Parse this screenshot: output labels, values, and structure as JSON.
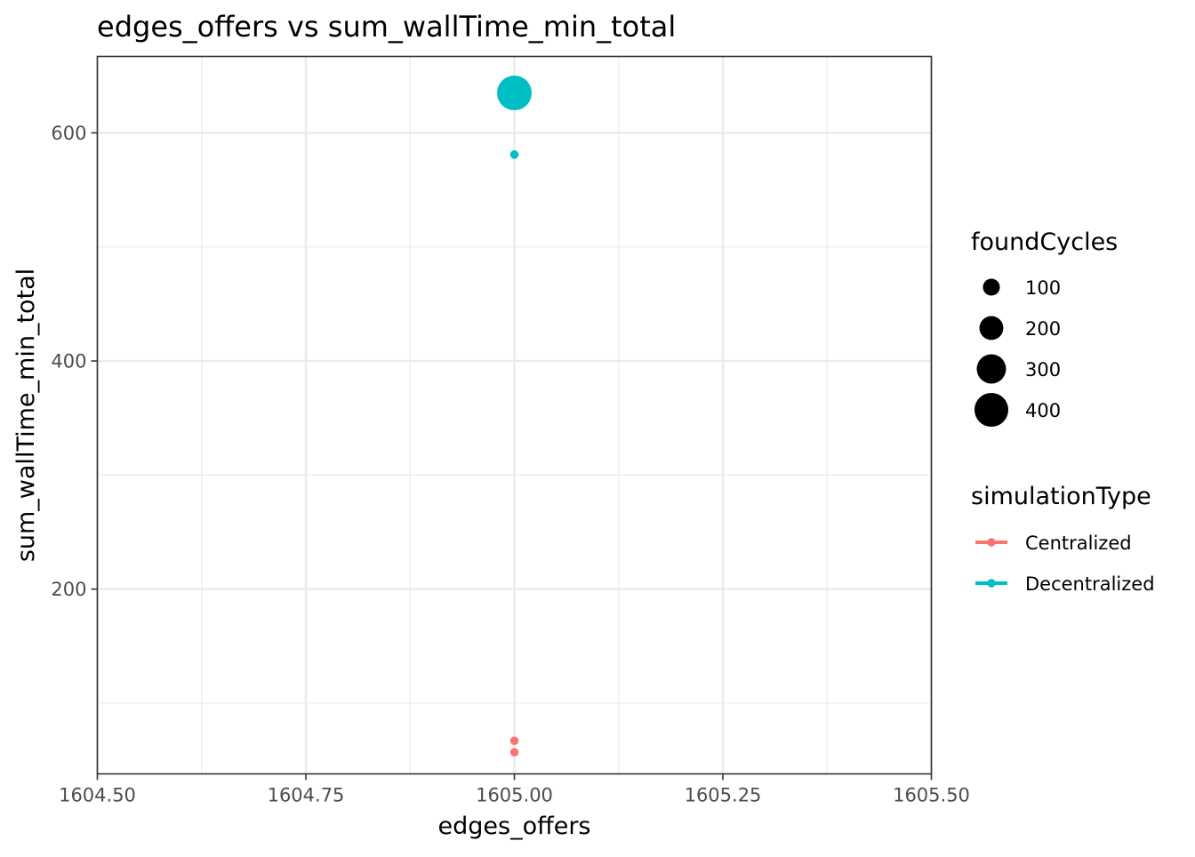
{
  "chart_data": {
    "type": "scatter",
    "title": "edges_offers  vs  sum_wallTime_min_total",
    "xlabel": "edges_offers",
    "ylabel": "sum_wallTime_min_total",
    "xlim": [
      1604.5,
      1605.5
    ],
    "ylim": [
      38,
      667
    ],
    "x_ticks": [
      1604.5,
      1604.75,
      1605.0,
      1605.25,
      1605.5
    ],
    "x_tick_labels": [
      "1604.50",
      "1604.75",
      "1605.00",
      "1605.25",
      "1605.50"
    ],
    "x_minor_ticks": [
      1604.625,
      1604.875,
      1605.125,
      1605.375
    ],
    "y_ticks": [
      200,
      400,
      600
    ],
    "y_tick_labels": [
      "200",
      "400",
      "600"
    ],
    "y_minor_ticks": [
      100,
      300,
      500
    ],
    "grid": true,
    "legend_position": "right",
    "series": [
      {
        "name": "Centralized",
        "color": "#F8766D",
        "points": [
          {
            "x": 1605.0,
            "y": 67,
            "foundCycles": 1
          },
          {
            "x": 1605.0,
            "y": 57,
            "foundCycles": 1
          }
        ]
      },
      {
        "name": "Decentralized",
        "color": "#00BFC4",
        "points": [
          {
            "x": 1605.0,
            "y": 635,
            "foundCycles": 420
          },
          {
            "x": 1605.0,
            "y": 581,
            "foundCycles": 1
          }
        ]
      }
    ],
    "size_legend": {
      "title": "foundCycles",
      "values": [
        100,
        200,
        300,
        400
      ],
      "labels": [
        "100",
        "200",
        "300",
        "400"
      ],
      "color": "#000000"
    },
    "color_legend": {
      "title": "simulationType",
      "entries": [
        {
          "label": "Centralized",
          "color": "#F8766D"
        },
        {
          "label": "Decentralized",
          "color": "#00BFC4"
        }
      ]
    }
  }
}
